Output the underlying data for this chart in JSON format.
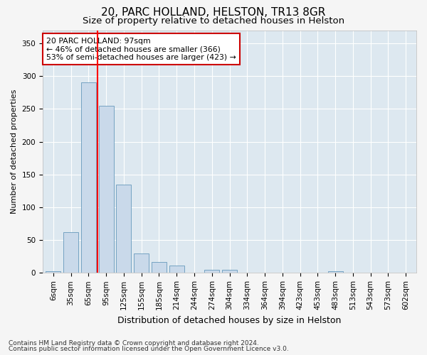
{
  "title": "20, PARC HOLLAND, HELSTON, TR13 8GR",
  "subtitle": "Size of property relative to detached houses in Helston",
  "xlabel": "Distribution of detached houses by size in Helston",
  "ylabel": "Number of detached properties",
  "footnote1": "Contains HM Land Registry data © Crown copyright and database right 2024.",
  "footnote2": "Contains public sector information licensed under the Open Government Licence v3.0.",
  "categories": [
    "6sqm",
    "35sqm",
    "65sqm",
    "95sqm",
    "125sqm",
    "155sqm",
    "185sqm",
    "214sqm",
    "244sqm",
    "274sqm",
    "304sqm",
    "334sqm",
    "364sqm",
    "394sqm",
    "423sqm",
    "453sqm",
    "483sqm",
    "513sqm",
    "543sqm",
    "573sqm",
    "602sqm"
  ],
  "values": [
    2,
    62,
    290,
    255,
    135,
    30,
    17,
    11,
    0,
    5,
    5,
    0,
    0,
    0,
    0,
    0,
    2,
    0,
    0,
    0,
    0
  ],
  "bar_color": "#c9d9ea",
  "bar_edge_color": "#6699bb",
  "red_line_index": 3,
  "annotation_text": "20 PARC HOLLAND: 97sqm\n← 46% of detached houses are smaller (366)\n53% of semi-detached houses are larger (423) →",
  "annotation_box_color": "#ffffff",
  "annotation_box_edge": "#cc0000",
  "ylim": [
    0,
    370
  ],
  "yticks": [
    0,
    50,
    100,
    150,
    200,
    250,
    300,
    350
  ],
  "bg_color": "#dde8f0",
  "grid_color": "#ffffff",
  "fig_bg_color": "#f5f5f5",
  "title_fontsize": 11,
  "subtitle_fontsize": 9.5,
  "xlabel_fontsize": 9,
  "ylabel_fontsize": 8,
  "tick_fontsize": 7.5,
  "annotation_fontsize": 7.8,
  "footnote_fontsize": 6.5
}
